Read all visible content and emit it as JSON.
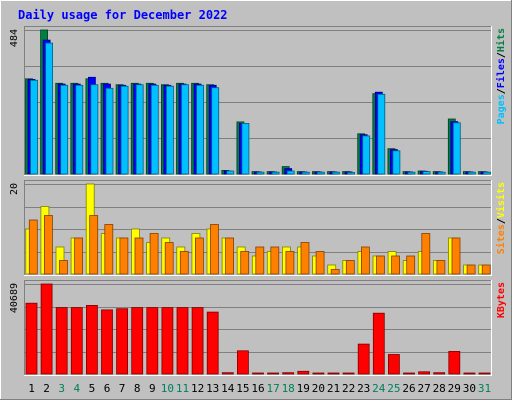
{
  "chart_data": {
    "type": "bar",
    "title": "Daily usage for December 2022",
    "categories": [
      "1",
      "2",
      "3",
      "4",
      "5",
      "6",
      "7",
      "8",
      "9",
      "10",
      "11",
      "12",
      "13",
      "14",
      "15",
      "16",
      "17",
      "18",
      "19",
      "20",
      "21",
      "22",
      "23",
      "24",
      "25",
      "26",
      "27",
      "28",
      "29",
      "30",
      "31"
    ],
    "weekend_days": [
      3,
      4,
      10,
      11,
      17,
      18,
      24,
      25,
      31
    ],
    "panels": [
      {
        "name": "requests",
        "max_label": "484",
        "ymax": 484,
        "side_labels": [
          "Pages",
          "/",
          "Files",
          "/",
          "Hits"
        ],
        "series": [
          {
            "name": "Hits",
            "color": "#008040",
            "values": [
              320,
              484,
              305,
              305,
              320,
              305,
              300,
              305,
              305,
              300,
              305,
              305,
              300,
              12,
              175,
              8,
              8,
              25,
              8,
              8,
              8,
              8,
              135,
              270,
              85,
              8,
              10,
              8,
              185,
              8,
              8
            ]
          },
          {
            "name": "Files",
            "color": "#0000ff",
            "values": [
              318,
              450,
              302,
              302,
              325,
              302,
              298,
              302,
              302,
              298,
              302,
              302,
              298,
              10,
              170,
              7,
              7,
              18,
              7,
              7,
              7,
              7,
              132,
              275,
              82,
              7,
              9,
              7,
              176,
              7,
              7
            ]
          },
          {
            "name": "Pages",
            "color": "#00c0ff",
            "values": [
              315,
              440,
              298,
              298,
              300,
              288,
              295,
              300,
              298,
              295,
              300,
              298,
              290,
              10,
              170,
              6,
              6,
              10,
              6,
              6,
              6,
              5,
              128,
              268,
              78,
              6,
              8,
              6,
              172,
              6,
              6
            ]
          }
        ]
      },
      {
        "name": "visits",
        "max_label": "20",
        "ymax": 20,
        "side_labels": [
          "Sites",
          "/",
          "Visits"
        ],
        "series": [
          {
            "name": "Visits",
            "color": "#ffff00",
            "values": [
              10,
              15,
              6,
              8,
              20,
              9,
              8,
              10,
              7,
              8,
              6,
              9,
              10,
              8,
              6,
              4,
              5,
              6,
              6,
              4,
              2,
              3,
              5,
              4,
              5,
              3,
              5,
              3,
              8,
              2,
              2
            ]
          },
          {
            "name": "Sites",
            "color": "#ff8000",
            "values": [
              12,
              13,
              3,
              8,
              13,
              11,
              8,
              8,
              9,
              7,
              5,
              8,
              11,
              8,
              5,
              6,
              6,
              5,
              7,
              5,
              1,
              3,
              6,
              4,
              4,
              4,
              9,
              3,
              8,
              2,
              2
            ]
          }
        ]
      },
      {
        "name": "kbytes",
        "max_label": "40689",
        "ymax": 40689,
        "side_labels": [
          "KBytes"
        ],
        "series": [
          {
            "name": "KBytes",
            "color": "#ff0000",
            "values": [
              32000,
              40689,
              30000,
              30000,
              31000,
              29000,
              29500,
              30000,
              30000,
              30000,
              30000,
              30000,
              28000,
              600,
              10500,
              300,
              300,
              600,
              1200,
              300,
              200,
              300,
              13500,
              27500,
              8800,
              300,
              1000,
              600,
              10200,
              300,
              300
            ]
          }
        ]
      }
    ],
    "colors": {
      "background": "#c0c0c0",
      "title": "#0000ff",
      "weekday_label": "#000000",
      "weekend_label": "#00805c",
      "grid": "#808080"
    }
  }
}
